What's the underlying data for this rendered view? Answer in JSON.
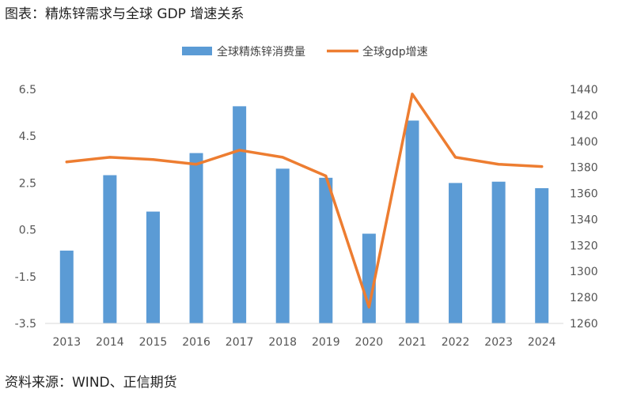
{
  "heading": "图表：精炼锌需求与全球 GDP 增速关系",
  "source": "资料来源：WIND、正信期货",
  "colors": {
    "bar": "#5b9bd5",
    "line": "#ed7d31",
    "axis": "#d9d9d9"
  },
  "chart_data": {
    "type": "bar",
    "categories": [
      "2013",
      "2014",
      "2015",
      "2016",
      "2017",
      "2018",
      "2019",
      "2020",
      "2021",
      "2022",
      "2023",
      "2024"
    ],
    "series": [
      {
        "name": "全球精炼锌消费量",
        "type": "bar",
        "axis": "right",
        "values": [
          1316,
          1374,
          1346,
          1391,
          1427,
          1379,
          1372,
          1329,
          1416,
          1368,
          1369,
          1364
        ]
      },
      {
        "name": "全球gdp增速",
        "type": "line",
        "axis": "left",
        "values": [
          3.4,
          3.6,
          3.5,
          3.3,
          3.9,
          3.6,
          2.8,
          -2.8,
          6.3,
          3.6,
          3.3,
          3.2
        ]
      }
    ],
    "y_left": {
      "ticks": [
        "6.5",
        "4.5",
        "2.5",
        "0.5",
        "-1.5",
        "-3.5"
      ],
      "range": [
        -3.5,
        6.5
      ]
    },
    "y_right": {
      "ticks": [
        "1440",
        "1420",
        "1400",
        "1380",
        "1360",
        "1340",
        "1320",
        "1300",
        "1280",
        "1260"
      ],
      "range": [
        1260,
        1440
      ]
    },
    "legend_position": "top",
    "grid": false
  }
}
